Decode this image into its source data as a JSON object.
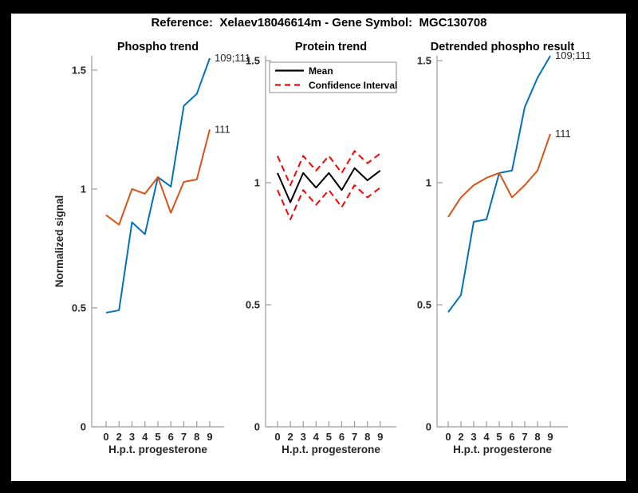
{
  "header": {
    "title": "Reference:  Xelaev18046614m - Gene Symbol:  MGC130708"
  },
  "colors": {
    "blue": "#0072BD",
    "orange": "#D95319",
    "red": "#FF0000",
    "black": "#000000",
    "axis": "#9a9a9a",
    "tick_label": "#262626",
    "legend_border": "#8c8c8c",
    "figure_background": "#ffffff",
    "frame_background": "#000000"
  },
  "chart_data": [
    {
      "type": "line",
      "title": "Phospho trend",
      "xlabel": "H.p.t. progesterone",
      "ylabel": "Normalized signal",
      "x_categories": [
        "0",
        "2",
        "3",
        "4",
        "5",
        "6",
        "7",
        "8",
        "9"
      ],
      "yticks": [
        0,
        0.5,
        1,
        1.5
      ],
      "ytick_labels": [
        "0",
        "0.5",
        "1",
        "1.5"
      ],
      "ylim": [
        0,
        1.56
      ],
      "grid": false,
      "series": [
        {
          "name": "109;111",
          "color": "blue",
          "style": "solid",
          "values": [
            0.48,
            0.49,
            0.86,
            0.81,
            1.05,
            1.01,
            1.35,
            1.4,
            1.55
          ],
          "end_label": "109;111"
        },
        {
          "name": "111",
          "color": "orange",
          "style": "solid",
          "values": [
            0.89,
            0.85,
            1.0,
            0.98,
            1.05,
            0.9,
            1.03,
            1.04,
            1.25
          ],
          "end_label": "111"
        }
      ]
    },
    {
      "type": "line",
      "title": "Protein trend",
      "xlabel": "H.p.t. progesterone",
      "ylabel": "",
      "x_categories": [
        "0",
        "2",
        "3",
        "4",
        "5",
        "6",
        "7",
        "8",
        "9"
      ],
      "yticks": [
        0,
        0.5,
        1,
        1.5
      ],
      "ytick_labels": [
        "0",
        "0.5",
        "1",
        "1.5"
      ],
      "ylim": [
        0,
        1.52
      ],
      "grid": false,
      "legend": {
        "position": "top",
        "entries": [
          {
            "label": "Mean",
            "color": "black",
            "style": "solid"
          },
          {
            "label": "Confidence Interval",
            "color": "red",
            "style": "dashed"
          }
        ]
      },
      "series": [
        {
          "name": "Mean",
          "color": "black",
          "style": "solid",
          "values": [
            1.04,
            0.92,
            1.04,
            0.98,
            1.04,
            0.97,
            1.06,
            1.01,
            1.05
          ]
        },
        {
          "name": "Confidence Interval upper",
          "color": "red",
          "style": "dashed",
          "values": [
            1.11,
            0.99,
            1.11,
            1.05,
            1.11,
            1.04,
            1.13,
            1.08,
            1.12
          ]
        },
        {
          "name": "Confidence Interval lower",
          "color": "red",
          "style": "dashed",
          "values": [
            0.97,
            0.85,
            0.97,
            0.91,
            0.97,
            0.9,
            0.99,
            0.94,
            0.98
          ]
        }
      ]
    },
    {
      "type": "line",
      "title": "Detrended phospho result",
      "xlabel": "H.p.t. progesterone",
      "ylabel": "",
      "x_categories": [
        "0",
        "2",
        "3",
        "4",
        "5",
        "6",
        "7",
        "8",
        "9"
      ],
      "yticks": [
        0,
        0.5,
        1,
        1.5
      ],
      "ytick_labels": [
        "0",
        "0.5",
        "1",
        "1.5"
      ],
      "ylim": [
        0,
        1.52
      ],
      "grid": false,
      "series": [
        {
          "name": "109;111",
          "color": "blue",
          "style": "solid",
          "values": [
            0.47,
            0.54,
            0.84,
            0.85,
            1.04,
            1.05,
            1.31,
            1.43,
            1.52
          ],
          "end_label": "109;111"
        },
        {
          "name": "111",
          "color": "orange",
          "style": "solid",
          "values": [
            0.86,
            0.94,
            0.99,
            1.02,
            1.04,
            0.94,
            0.99,
            1.05,
            1.2
          ],
          "end_label": "111"
        }
      ]
    }
  ]
}
